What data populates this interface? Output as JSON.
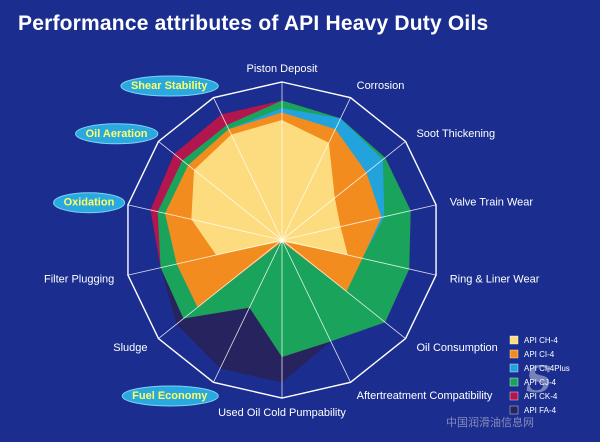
{
  "chart_data": {
    "type": "radar",
    "title": "Performance attributes of API Heavy Duty Oils",
    "axes": [
      {
        "label": "Piston Deposit",
        "highlighted": false
      },
      {
        "label": "Corrosion",
        "highlighted": false
      },
      {
        "label": "Soot Thickening",
        "highlighted": false
      },
      {
        "label": "Valve Train Wear",
        "highlighted": false
      },
      {
        "label": "Ring & Liner Wear",
        "highlighted": false
      },
      {
        "label": "Oil Consumption",
        "highlighted": false
      },
      {
        "label": "Aftertreatment Compatibility",
        "highlighted": false
      },
      {
        "label": "Used Oil Cold Pumpability",
        "highlighted": false
      },
      {
        "label": "Fuel Economy",
        "highlighted": true
      },
      {
        "label": "Sludge",
        "highlighted": false
      },
      {
        "label": "Filter Plugging",
        "highlighted": false
      },
      {
        "label": "Oxidation",
        "highlighted": true
      },
      {
        "label": "Oil Aeration",
        "highlighted": true
      },
      {
        "label": "Shear Stability",
        "highlighted": true
      }
    ],
    "rlim": [
      0,
      1
    ],
    "series": [
      {
        "name": "API FA-4",
        "color": "#27235e",
        "values": [
          0.93,
          0.9,
          0.88,
          0.88,
          0.87,
          0.88,
          0.75,
          0.95,
          0.95,
          0.9,
          0.83,
          0.9,
          0.92,
          0.93
        ]
      },
      {
        "name": "API CK-4",
        "color": "#b3164e",
        "values": [
          0.93,
          0.9,
          0.88,
          0.88,
          0.87,
          0.88,
          0.75,
          0.78,
          0.5,
          0.84,
          0.83,
          0.9,
          0.92,
          0.93
        ]
      },
      {
        "name": "API CJ-4",
        "color": "#1aa35b",
        "values": [
          0.93,
          0.9,
          0.88,
          0.88,
          0.87,
          0.88,
          0.75,
          0.78,
          0.5,
          0.84,
          0.83,
          0.85,
          0.85,
          0.85
        ]
      },
      {
        "name": "API CI-4Plus",
        "color": "#23a3dc",
        "values": [
          0.88,
          0.9,
          0.86,
          0.7,
          0.55,
          0.55,
          0.02,
          0.02,
          0.02,
          0.72,
          0.72,
          0.8,
          0.8,
          0.82
        ]
      },
      {
        "name": "API CI-4",
        "color": "#f28c1f",
        "values": [
          0.85,
          0.82,
          0.72,
          0.68,
          0.55,
          0.55,
          0.02,
          0.02,
          0.02,
          0.72,
          0.72,
          0.8,
          0.8,
          0.82
        ]
      },
      {
        "name": "API CH-4",
        "color": "#fddc7f",
        "values": [
          0.8,
          0.72,
          0.45,
          0.4,
          0.45,
          0.02,
          0.02,
          0.02,
          0.02,
          0.02,
          0.45,
          0.62,
          0.75,
          0.78
        ]
      }
    ],
    "legend_position": "bottom-right"
  },
  "watermark": {
    "brand": "S",
    "text": "中国润滑油信息网"
  }
}
